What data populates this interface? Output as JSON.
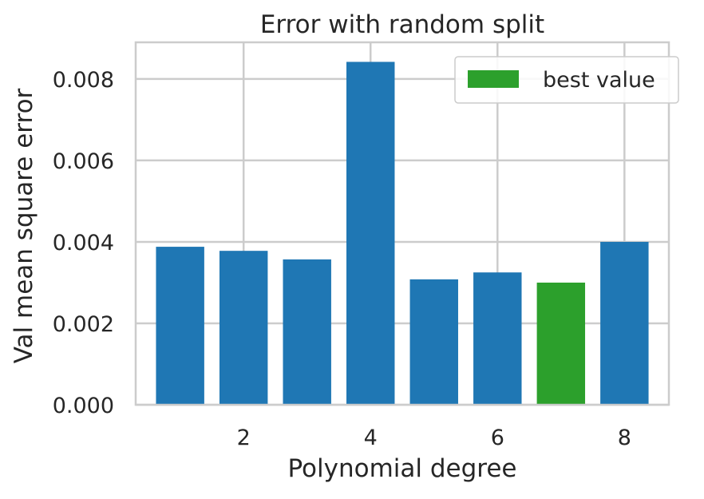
{
  "chart_data": {
    "type": "bar",
    "title": "Error with random split",
    "xlabel": "Polynomial degree",
    "ylabel": "Val mean square error",
    "categories": [
      1,
      2,
      3,
      4,
      5,
      6,
      7,
      8
    ],
    "values": [
      0.00388,
      0.00378,
      0.00357,
      0.00842,
      0.00308,
      0.00325,
      0.003,
      0.004
    ],
    "highlight_index": 6,
    "xlim": [
      0.3,
      8.7
    ],
    "ylim": [
      0,
      0.0089
    ],
    "xticks": [
      2,
      4,
      6,
      8
    ],
    "xtick_labels": [
      "2",
      "4",
      "6",
      "8"
    ],
    "yticks": [
      0,
      0.002,
      0.004,
      0.006,
      0.008
    ],
    "ytick_labels": [
      "0.000",
      "0.002",
      "0.004",
      "0.006",
      "0.008"
    ],
    "grid": true,
    "legend": {
      "position": "top-right",
      "entries": [
        {
          "label": "best value",
          "color": "#2ca02c"
        }
      ]
    },
    "colors": {
      "bar": "#1f77b4",
      "best": "#2ca02c",
      "grid": "#cccccc",
      "spine": "#cccccc",
      "text": "#262626"
    }
  }
}
